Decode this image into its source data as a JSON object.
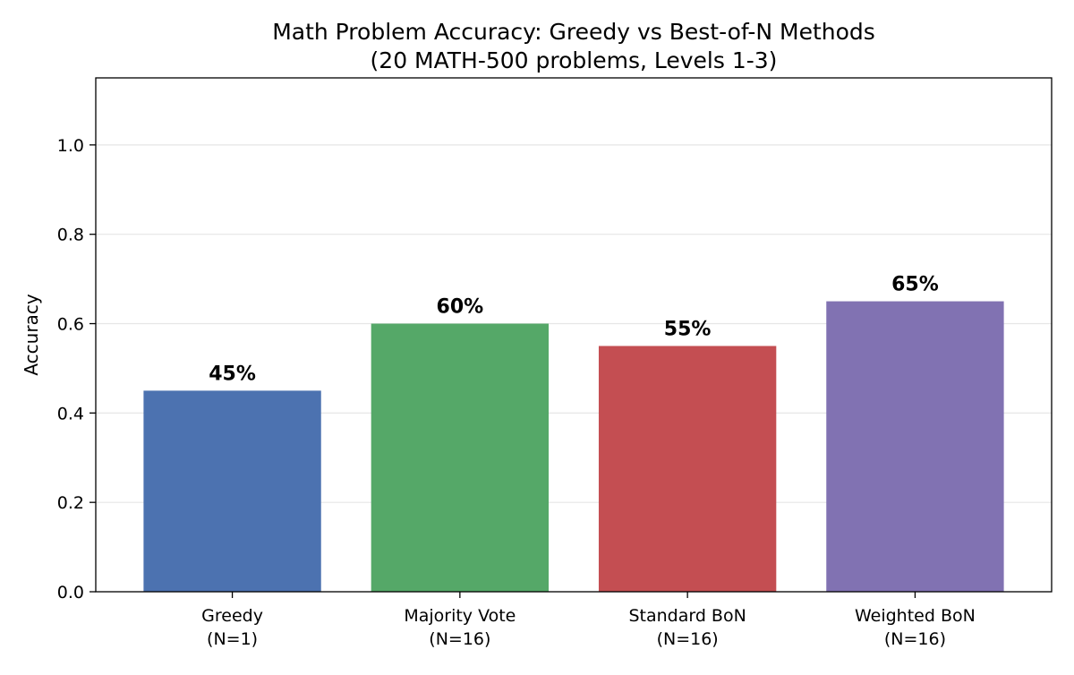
{
  "chart_data": {
    "type": "bar",
    "title": "Math Problem Accuracy: Greedy vs Best-of-N Methods",
    "subtitle": "(20 MATH-500 problems, Levels 1-3)",
    "xlabel": "",
    "ylabel": "Accuracy",
    "ylim": [
      0,
      1.15
    ],
    "yticks": [
      {
        "value": 0.0,
        "label": "0.0"
      },
      {
        "value": 0.2,
        "label": "0.2"
      },
      {
        "value": 0.4,
        "label": "0.4"
      },
      {
        "value": 0.6,
        "label": "0.6"
      },
      {
        "value": 0.8,
        "label": "0.8"
      },
      {
        "value": 1.0,
        "label": "1.0"
      }
    ],
    "grid": true,
    "categories": [
      {
        "line1": "Greedy",
        "line2": "(N=1)"
      },
      {
        "line1": "Majority Vote",
        "line2": "(N=16)"
      },
      {
        "line1": "Standard BoN",
        "line2": "(N=16)"
      },
      {
        "line1": "Weighted BoN",
        "line2": "(N=16)"
      }
    ],
    "values": [
      0.45,
      0.6,
      0.55,
      0.65
    ],
    "data_labels": [
      "45%",
      "60%",
      "55%",
      "65%"
    ],
    "colors": [
      "#4c72b0",
      "#55a868",
      "#c44e52",
      "#8172b2"
    ]
  }
}
